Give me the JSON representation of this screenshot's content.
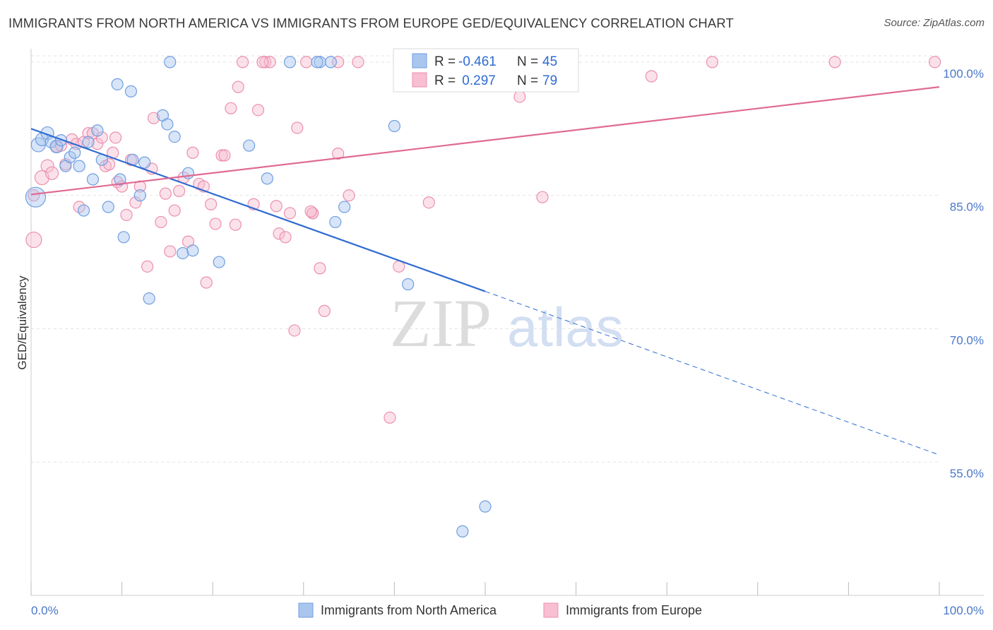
{
  "title": "IMMIGRANTS FROM NORTH AMERICA VS IMMIGRANTS FROM EUROPE GED/EQUIVALENCY CORRELATION CHART",
  "source": "Source: ZipAtlas.com",
  "watermark": {
    "zip": "ZIP",
    "atlas": "atlas"
  },
  "colors": {
    "blue_fill": "#a9c6ef",
    "blue_stroke": "#6f9ee0",
    "blue_line": "#2f6bd1",
    "pink_fill": "#f7bfd1",
    "pink_stroke": "#ec8fae",
    "pink_line": "#e06a93",
    "tick_label": "#4a78c8",
    "grid": "#e3e3e3"
  },
  "legend": {
    "rows": [
      {
        "r_label": "R = ",
        "r_value": "-0.461",
        "n_label": "N = ",
        "n_value": "45",
        "series": "blue"
      },
      {
        "r_label": "R = ",
        "r_value": " 0.297",
        "n_label": "N = ",
        "n_value": "79",
        "series": "pink"
      }
    ]
  },
  "chart_data": {
    "type": "scatter",
    "title": "IMMIGRANTS FROM NORTH AMERICA VS IMMIGRANTS FROM EUROPE GED/EQUIVALENCY CORRELATION CHART",
    "xlabel": "",
    "ylabel": "GED/Equivalency",
    "xlim": [
      0,
      100
    ],
    "ylim": [
      40,
      101.5
    ],
    "x_tick_labels": [
      "0.0%",
      "100.0%"
    ],
    "y_ticks": [
      55,
      70,
      85,
      100
    ],
    "y_tick_labels": [
      "55.0%",
      "70.0%",
      "85.0%",
      "100.0%"
    ],
    "grid": "horizontal dashed",
    "legend_position": "top-center",
    "series": [
      {
        "name": "Immigrants from North America",
        "color": "blue",
        "r": -0.461,
        "n": 45,
        "trend": {
          "x0": 0,
          "y0": 92.5,
          "x1": 50,
          "y1": 74.2,
          "dash_to_x": 100,
          "dash_to_y": 55.8
        },
        "points": [
          [
            0.5,
            84.8,
            14
          ],
          [
            0.8,
            90.7,
            10
          ],
          [
            1.2,
            91.3,
            9
          ],
          [
            1.8,
            92.0,
            9
          ],
          [
            2.2,
            91.0,
            8
          ],
          [
            2.8,
            90.5,
            9
          ],
          [
            3.3,
            91.2,
            8
          ],
          [
            3.8,
            88.3,
            8
          ],
          [
            4.3,
            89.3,
            8
          ],
          [
            4.8,
            89.8,
            8
          ],
          [
            5.3,
            88.3,
            8
          ],
          [
            5.8,
            83.3,
            8
          ],
          [
            6.3,
            91.0,
            8
          ],
          [
            6.8,
            86.8,
            8
          ],
          [
            7.3,
            92.3,
            8
          ],
          [
            7.8,
            89.0,
            8
          ],
          [
            8.5,
            83.7,
            8
          ],
          [
            9.5,
            97.5,
            8
          ],
          [
            9.8,
            86.8,
            8
          ],
          [
            10.2,
            80.3,
            8
          ],
          [
            11.0,
            96.7,
            8
          ],
          [
            11.2,
            89.0,
            8
          ],
          [
            12.0,
            85.0,
            8
          ],
          [
            12.5,
            88.7,
            8
          ],
          [
            13.0,
            73.4,
            8
          ],
          [
            14.5,
            94.0,
            8
          ],
          [
            15.0,
            93.0,
            8
          ],
          [
            15.3,
            100.0,
            8
          ],
          [
            15.8,
            91.6,
            8
          ],
          [
            16.7,
            78.5,
            8
          ],
          [
            17.3,
            87.5,
            8
          ],
          [
            17.8,
            78.8,
            8
          ],
          [
            20.7,
            77.5,
            8
          ],
          [
            24.0,
            90.6,
            8
          ],
          [
            26.0,
            86.9,
            8
          ],
          [
            28.5,
            100.0,
            8
          ],
          [
            31.8,
            100.0,
            8
          ],
          [
            33.0,
            100.0,
            8
          ],
          [
            33.5,
            82.0,
            8
          ],
          [
            34.5,
            83.7,
            8
          ],
          [
            40.0,
            92.8,
            8
          ],
          [
            41.5,
            75.0,
            8
          ],
          [
            50.0,
            50.0,
            8
          ],
          [
            47.5,
            47.2,
            8
          ],
          [
            31.5,
            100.0,
            8
          ]
        ]
      },
      {
        "name": "Immigrants from Europe",
        "color": "pink",
        "r": 0.297,
        "n": 79,
        "trend": {
          "x0": 0,
          "y0": 85.1,
          "x1": 100,
          "y1": 97.2
        },
        "points": [
          [
            0.3,
            80.0,
            11
          ],
          [
            1.2,
            87.0,
            10
          ],
          [
            1.8,
            88.3,
            9
          ],
          [
            2.3,
            87.5,
            9
          ],
          [
            2.8,
            90.5,
            8
          ],
          [
            3.3,
            90.6,
            8
          ],
          [
            3.8,
            88.5,
            8
          ],
          [
            4.5,
            91.3,
            8
          ],
          [
            5.0,
            90.8,
            8
          ],
          [
            5.3,
            83.7,
            8
          ],
          [
            5.8,
            91.0,
            8
          ],
          [
            6.3,
            92.0,
            8
          ],
          [
            6.8,
            92.0,
            8
          ],
          [
            7.3,
            90.8,
            8
          ],
          [
            7.8,
            91.5,
            8
          ],
          [
            8.2,
            88.3,
            8
          ],
          [
            8.6,
            88.5,
            8
          ],
          [
            9.0,
            89.8,
            8
          ],
          [
            9.5,
            86.5,
            8
          ],
          [
            10.0,
            86.0,
            8
          ],
          [
            10.5,
            82.8,
            8
          ],
          [
            11.0,
            89.0,
            8
          ],
          [
            11.5,
            84.2,
            8
          ],
          [
            12.0,
            86.0,
            8
          ],
          [
            12.8,
            77.0,
            8
          ],
          [
            13.3,
            88.0,
            8
          ],
          [
            13.5,
            93.7,
            8
          ],
          [
            14.3,
            82.0,
            8
          ],
          [
            14.8,
            85.2,
            8
          ],
          [
            15.3,
            78.7,
            8
          ],
          [
            15.8,
            83.3,
            8
          ],
          [
            16.3,
            85.5,
            8
          ],
          [
            16.8,
            87.0,
            8
          ],
          [
            17.3,
            79.8,
            8
          ],
          [
            17.8,
            89.8,
            8
          ],
          [
            18.5,
            86.3,
            8
          ],
          [
            19.0,
            86.0,
            8
          ],
          [
            19.3,
            75.2,
            8
          ],
          [
            19.8,
            84.0,
            8
          ],
          [
            20.3,
            81.8,
            8
          ],
          [
            21.0,
            89.5,
            8
          ],
          [
            21.3,
            89.5,
            8
          ],
          [
            22.0,
            94.8,
            8
          ],
          [
            22.5,
            81.7,
            8
          ],
          [
            22.8,
            97.2,
            8
          ],
          [
            23.3,
            100.0,
            8
          ],
          [
            24.5,
            84.0,
            8
          ],
          [
            25.0,
            94.6,
            8
          ],
          [
            25.8,
            100.0,
            8
          ],
          [
            26.3,
            100.0,
            8
          ],
          [
            27.0,
            83.8,
            8
          ],
          [
            27.3,
            80.7,
            8
          ],
          [
            28.0,
            80.3,
            8
          ],
          [
            28.5,
            83.0,
            8
          ],
          [
            29.3,
            92.6,
            8
          ],
          [
            30.3,
            100.0,
            8
          ],
          [
            31.0,
            83.0,
            8
          ],
          [
            31.8,
            76.8,
            8
          ],
          [
            32.3,
            72.0,
            8
          ],
          [
            33.8,
            89.7,
            8
          ],
          [
            35.0,
            85.0,
            8
          ],
          [
            36.0,
            100.0,
            8
          ],
          [
            29.0,
            69.8,
            8
          ],
          [
            39.5,
            60.0,
            8
          ],
          [
            40.5,
            77.0,
            8
          ],
          [
            43.8,
            84.2,
            8
          ],
          [
            50.5,
            100.0,
            8
          ],
          [
            53.8,
            96.1,
            8
          ],
          [
            56.3,
            84.8,
            8
          ],
          [
            68.3,
            98.4,
            8
          ],
          [
            75.0,
            100.0,
            8
          ],
          [
            88.5,
            100.0,
            8
          ],
          [
            99.5,
            100.0,
            8
          ],
          [
            31.0,
            83.0,
            8
          ],
          [
            25.5,
            100.0,
            8
          ],
          [
            33.8,
            100.0,
            8
          ],
          [
            0.3,
            85.0,
            8
          ],
          [
            9.3,
            91.5,
            8
          ],
          [
            30.8,
            83.2,
            8
          ]
        ]
      }
    ]
  }
}
